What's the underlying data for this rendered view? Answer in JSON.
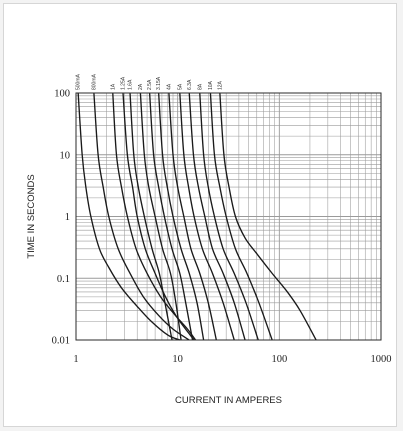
{
  "chart_data": {
    "type": "line",
    "title": "",
    "xlabel": "CURRENT IN AMPERES",
    "ylabel": "TIME IN SECONDS",
    "xscale": "log",
    "yscale": "log",
    "xlim": [
      1,
      1000
    ],
    "ylim": [
      0.01,
      100
    ],
    "grid": true,
    "x_tick_labels": [
      "1",
      "10",
      "100",
      "1000"
    ],
    "y_tick_labels": [
      "100",
      "10",
      "1",
      "0.1",
      "0.01"
    ],
    "x_ticks": [
      1,
      10,
      100,
      1000
    ],
    "y_ticks": [
      100,
      10,
      1,
      0.1,
      0.01
    ],
    "line_color": "#1a1a1a",
    "grid_color": "#9a9a9a",
    "series": [
      {
        "name": "500mA",
        "x": [
          1.05,
          1.15,
          1.25,
          1.4,
          1.7,
          2.1,
          2.8,
          4.0,
          5.5,
          8.0,
          10.5
        ],
        "y": [
          100,
          10,
          3,
          1,
          0.3,
          0.15,
          0.07,
          0.035,
          0.02,
          0.012,
          0.01
        ]
      },
      {
        "name": "800mA",
        "x": [
          1.5,
          1.65,
          1.85,
          2.1,
          2.6,
          3.4,
          4.6,
          6.5,
          9.0,
          13
        ],
        "y": [
          100,
          10,
          3,
          1,
          0.3,
          0.12,
          0.05,
          0.025,
          0.015,
          0.01
        ]
      },
      {
        "name": "1A",
        "x": [
          2.3,
          2.5,
          2.8,
          3.2,
          3.9,
          5.0,
          6.8,
          9.5,
          12.5,
          15
        ],
        "y": [
          100,
          10,
          3,
          1,
          0.3,
          0.12,
          0.05,
          0.025,
          0.015,
          0.01
        ]
      },
      {
        "name": "1.25A",
        "x": [
          2.9,
          3.2,
          3.6,
          4.0,
          4.8,
          6.0,
          7.2,
          8.5,
          10.5,
          14.5
        ],
        "y": [
          100,
          10,
          3,
          1,
          0.3,
          0.12,
          0.06,
          0.035,
          0.02,
          0.01
        ]
      },
      {
        "name": "1.6A",
        "x": [
          3.4,
          3.7,
          4.1,
          4.7,
          5.6,
          6.6,
          7.5,
          8.8
        ],
        "y": [
          100,
          10,
          3,
          1,
          0.3,
          0.12,
          0.04,
          0.01
        ]
      },
      {
        "name": "2A",
        "x": [
          4.3,
          4.7,
          5.2,
          6.0,
          7.1,
          8.5,
          9.6,
          10.8
        ],
        "y": [
          100,
          10,
          3,
          1,
          0.3,
          0.12,
          0.04,
          0.01
        ]
      },
      {
        "name": "2.5A",
        "x": [
          5.3,
          5.8,
          6.5,
          7.4,
          8.8,
          10.5,
          12,
          14
        ],
        "y": [
          100,
          10,
          3,
          1,
          0.3,
          0.12,
          0.04,
          0.01
        ]
      },
      {
        "name": "3.15A",
        "x": [
          6.5,
          7.1,
          7.9,
          9.0,
          10.8,
          13,
          15.5,
          18
        ],
        "y": [
          100,
          10,
          3,
          1,
          0.3,
          0.12,
          0.04,
          0.01
        ]
      },
      {
        "name": "4A",
        "x": [
          8.2,
          9.0,
          10,
          11.5,
          13.5,
          16.5,
          20,
          24
        ],
        "y": [
          100,
          10,
          3,
          1,
          0.3,
          0.12,
          0.04,
          0.01
        ]
      },
      {
        "name": "5A",
        "x": [
          10.5,
          11.5,
          12.8,
          14.5,
          17.5,
          22,
          28,
          36
        ],
        "y": [
          100,
          10,
          3,
          1,
          0.3,
          0.12,
          0.04,
          0.01
        ]
      },
      {
        "name": "6.3A",
        "x": [
          13,
          14.3,
          16,
          18.5,
          22,
          28,
          36,
          46
        ],
        "y": [
          100,
          10,
          3,
          1,
          0.3,
          0.12,
          0.04,
          0.01
        ]
      },
      {
        "name": "8A",
        "x": [
          16.5,
          18,
          20,
          23,
          28,
          36,
          47,
          62
        ],
        "y": [
          100,
          10,
          3,
          1,
          0.3,
          0.12,
          0.04,
          0.01
        ]
      },
      {
        "name": "10A",
        "x": [
          21,
          23,
          26,
          30,
          37,
          48,
          63,
          85
        ],
        "y": [
          100,
          10,
          3,
          1,
          0.3,
          0.12,
          0.04,
          0.01
        ]
      },
      {
        "name": "12A",
        "x": [
          26,
          28.5,
          32,
          37,
          46,
          60,
          85,
          120,
          160,
          230
        ],
        "y": [
          100,
          10,
          3,
          1,
          0.45,
          0.25,
          0.12,
          0.06,
          0.03,
          0.01
        ]
      }
    ]
  }
}
